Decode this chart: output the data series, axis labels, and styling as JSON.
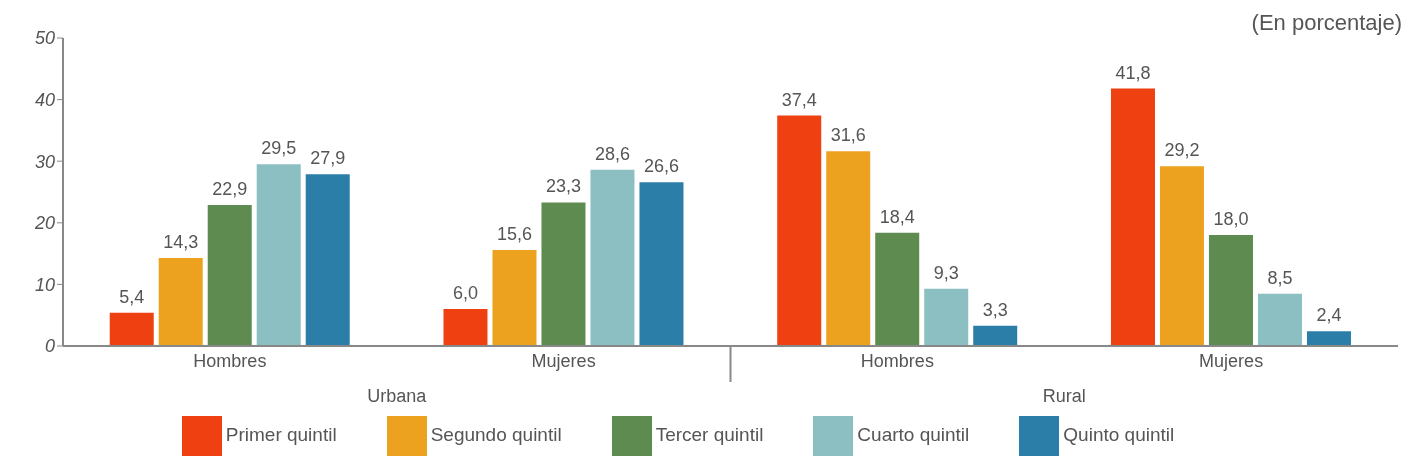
{
  "chart_data": {
    "type": "bar",
    "subtitle": "(En porcentaje)",
    "categories": [
      "Hombres",
      "Mujeres",
      "Hombres",
      "Mujeres"
    ],
    "series": [
      {
        "name": "Primer quintil",
        "color": "#ee4010",
        "values": [
          5.4,
          6.0,
          37.4,
          41.8
        ],
        "value_labels": [
          "5,4",
          "6,0",
          "37,4",
          "41,8"
        ]
      },
      {
        "name": "Segundo quintil",
        "color": "#eda21f",
        "values": [
          14.3,
          15.6,
          31.6,
          29.2
        ],
        "value_labels": [
          "14,3",
          "15,6",
          "31,6",
          "29,2"
        ]
      },
      {
        "name": "Tercer quintil",
        "color": "#5e8b50",
        "values": [
          22.9,
          23.3,
          18.4,
          18.0
        ],
        "value_labels": [
          "22,9",
          "23,3",
          "18,4",
          "18,0"
        ]
      },
      {
        "name": "Cuarto quintil",
        "color": "#8bbfc2",
        "values": [
          29.5,
          28.6,
          9.3,
          8.5
        ],
        "value_labels": [
          "29,5",
          "28,6",
          "9,3",
          "8,5"
        ]
      },
      {
        "name": "Quinto quintil",
        "color": "#2a7ea8",
        "values": [
          27.9,
          26.6,
          3.3,
          2.4
        ],
        "value_labels": [
          "27,9",
          "26,6",
          "3,3",
          "2,4"
        ]
      }
    ],
    "annotations": [
      "Urbana",
      "Rural"
    ],
    "ylim": [
      0,
      50
    ],
    "yticks": [
      0,
      10,
      20,
      30,
      40,
      50
    ],
    "grid": false,
    "legend": "bottom"
  }
}
